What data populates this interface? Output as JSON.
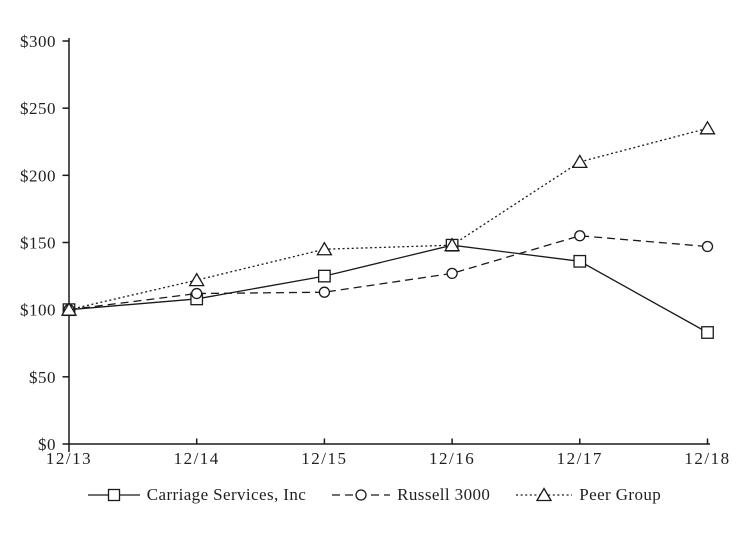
{
  "chart_data": {
    "type": "line",
    "title": "",
    "categories": [
      "12/13",
      "12/14",
      "12/15",
      "12/16",
      "12/17",
      "12/18"
    ],
    "series": [
      {
        "name": "Carriage Services, Inc",
        "marker": "square",
        "line_style": "solid",
        "values": [
          100,
          108,
          125,
          148,
          136,
          83
        ]
      },
      {
        "name": "Russell 3000",
        "marker": "circle",
        "line_style": "dashed",
        "values": [
          100,
          112,
          113,
          127,
          155,
          147
        ]
      },
      {
        "name": "Peer Group",
        "marker": "triangle",
        "line_style": "dotted",
        "values": [
          100,
          122,
          145,
          148,
          210,
          235
        ]
      }
    ],
    "y_axis": {
      "min": 0,
      "max": 300,
      "step": 50,
      "tick_labels": [
        "$0",
        "$50",
        "$100",
        "$150",
        "$200",
        "$250",
        "$300"
      ]
    },
    "x_axis": {
      "tick_labels": [
        "12/13",
        "12/14",
        "12/15",
        "12/16",
        "12/17",
        "12/18"
      ]
    },
    "grid": false,
    "legend_position": "bottom",
    "colors": {
      "line": "#1a1a1a",
      "marker_fill": "#ffffff",
      "background": "#ffffff",
      "text": "#1f1f1f"
    }
  }
}
